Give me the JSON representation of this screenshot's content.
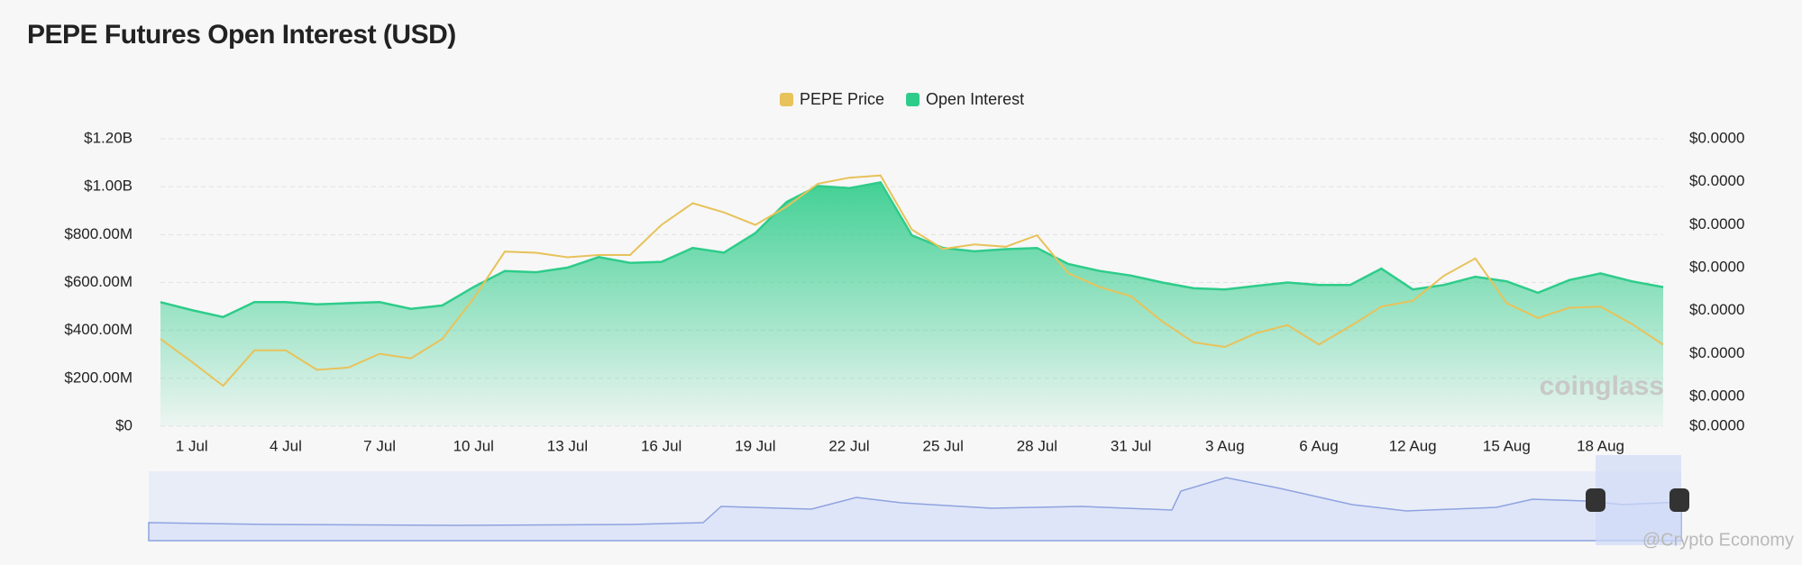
{
  "chart_data": {
    "type": "line-area",
    "title": "PEPE Futures Open Interest (USD)",
    "watermark": "coinglass",
    "credit": "@Crypto Economy",
    "categories": [
      null,
      "1 Jul",
      null,
      null,
      "4 Jul",
      null,
      null,
      "7 Jul",
      null,
      null,
      "10 Jul",
      null,
      null,
      "13 Jul",
      null,
      null,
      "16 Jul",
      null,
      null,
      "19 Jul",
      null,
      null,
      "22 Jul",
      null,
      null,
      "25 Jul",
      null,
      null,
      "28 Jul",
      null,
      null,
      "31 Jul",
      null,
      null,
      "3 Aug",
      null,
      null,
      "6 Aug",
      null,
      null,
      "12 Aug",
      null,
      null,
      "15 Aug",
      null,
      null,
      "18 Aug",
      null,
      null
    ],
    "series": [
      {
        "name": "PEPE Price",
        "color": "#e8c25a",
        "axis": "y2",
        "values": [
          7.01e-06,
          6.21e-06,
          5.37e-06,
          6.61e-06,
          6.61e-06,
          5.93e-06,
          6.01e-06,
          6.49e-06,
          6.33e-06,
          7.01e-06,
          8.42e-06,
          1.006e-05,
          1.002e-05,
          9.86e-06,
          9.94e-06,
          9.94e-06,
          1.099e-05,
          1.175e-05,
          1.143e-05,
          1.099e-05,
          1.163e-05,
          1.243e-05,
          1.264e-05,
          1.272e-05,
          1.083e-05,
          1.015e-05,
          1.031e-05,
          1.023e-05,
          1.063e-05,
          9.3e-06,
          8.82e-06,
          8.5e-06,
          7.62e-06,
          6.89e-06,
          6.73e-06,
          7.21e-06,
          7.49e-06,
          6.81e-06,
          7.45e-06,
          8.14e-06,
          8.34e-06,
          9.22e-06,
          9.82e-06,
          8.26e-06,
          7.74e-06,
          8.1e-06,
          8.14e-06,
          7.53e-06,
          6.81e-06
        ]
      },
      {
        "name": "Open Interest",
        "color": "#2ecc8a",
        "values": [
          518000000,
          485000000,
          456000000,
          518000000,
          518000000,
          509000000,
          514000000,
          518000000,
          490000000,
          504000000,
          581000000,
          648000000,
          643000000,
          662000000,
          706000000,
          682000000,
          686000000,
          744000000,
          725000000,
          806000000,
          936000000,
          1003000000,
          994000000,
          1018000000,
          797000000,
          744000000,
          730000000,
          739000000,
          744000000,
          677000000,
          648000000,
          629000000,
          600000000,
          576000000,
          571000000,
          586000000,
          600000000,
          590000000,
          590000000,
          658000000,
          571000000,
          590000000,
          624000000,
          605000000,
          557000000,
          610000000,
          638000000,
          605000000,
          581000000
        ]
      }
    ],
    "ylim": [
      0,
      1200000000
    ],
    "yticks": [
      {
        "value": 0,
        "label": "$0"
      },
      {
        "value": 200000000,
        "label": "$200.00M"
      },
      {
        "value": 400000000,
        "label": "$400.00M"
      },
      {
        "value": 600000000,
        "label": "$600.00M"
      },
      {
        "value": 800000000,
        "label": "$800.00M"
      },
      {
        "value": 1000000000,
        "label": "$1.00B"
      },
      {
        "value": 1200000000,
        "label": "$1.20B"
      }
    ],
    "y2lim": [
      3.96e-06,
      1.4e-05
    ],
    "y2ticks": [
      {
        "value": 3.96e-06,
        "label": "$0.0000"
      },
      {
        "value": 5e-06,
        "label": "$0.0000"
      },
      {
        "value": 6.5e-06,
        "label": "$0.0000"
      },
      {
        "value": 8e-06,
        "label": "$0.0000"
      },
      {
        "value": 9.5e-06,
        "label": "$0.0000"
      },
      {
        "value": 1.1e-05,
        "label": "$0.0000"
      },
      {
        "value": 1.25e-05,
        "label": "$0.0000"
      },
      {
        "value": 1.4e-05,
        "label": "$0.0000"
      }
    ],
    "grid": true,
    "legend": "top"
  }
}
